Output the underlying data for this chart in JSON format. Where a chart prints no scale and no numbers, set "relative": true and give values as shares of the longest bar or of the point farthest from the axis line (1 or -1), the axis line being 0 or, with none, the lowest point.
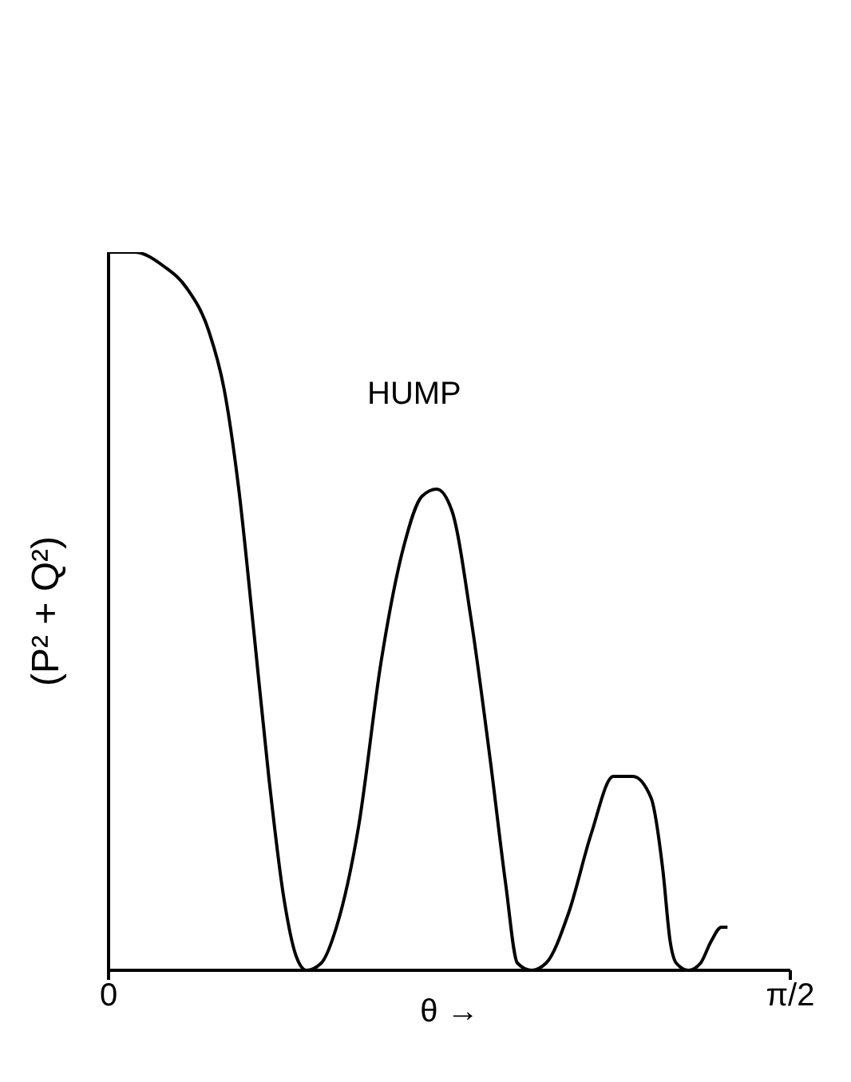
{
  "chart_data": {
    "type": "line",
    "relative": true,
    "xlabel": "θ →",
    "ylabel": "(P² + Q²)",
    "annotations": [
      "HUMP"
    ],
    "xlim": [
      0,
      1.5708
    ],
    "xticks": [
      0,
      {
        "value": 1.5708,
        "label": "π/2"
      }
    ],
    "x": [
      0,
      0.059,
      0.128,
      0.18,
      0.231,
      0.266,
      0.3,
      0.335,
      0.369,
      0.404,
      0.432,
      0.456,
      0.49,
      0.525,
      0.576,
      0.628,
      0.68,
      0.722,
      0.756,
      0.791,
      0.835,
      0.88,
      0.915,
      0.942,
      0.974,
      1.008,
      1.06,
      1.112,
      1.163,
      1.208,
      1.25,
      1.277,
      1.294,
      1.308,
      1.336,
      1.364,
      1.388,
      1.412,
      1.426
    ],
    "series": [
      {
        "color": "#000000",
        "values": [
          1,
          1,
          0.98,
          0.95,
          0.89,
          0.81,
          0.67,
          0.47,
          0.27,
          0.1,
          0.02,
          0,
          0.01,
          0.06,
          0.2,
          0.43,
          0.59,
          0.66,
          0.67,
          0.64,
          0.49,
          0.29,
          0.12,
          0.01,
          0,
          0.01,
          0.08,
          0.19,
          0.27,
          0.27,
          0.24,
          0.14,
          0.04,
          0.01,
          0,
          0.01,
          0.04,
          0.06,
          0.06
        ]
      }
    ],
    "grid": false,
    "legend": false,
    "marker": "none",
    "line_style": "solid"
  }
}
